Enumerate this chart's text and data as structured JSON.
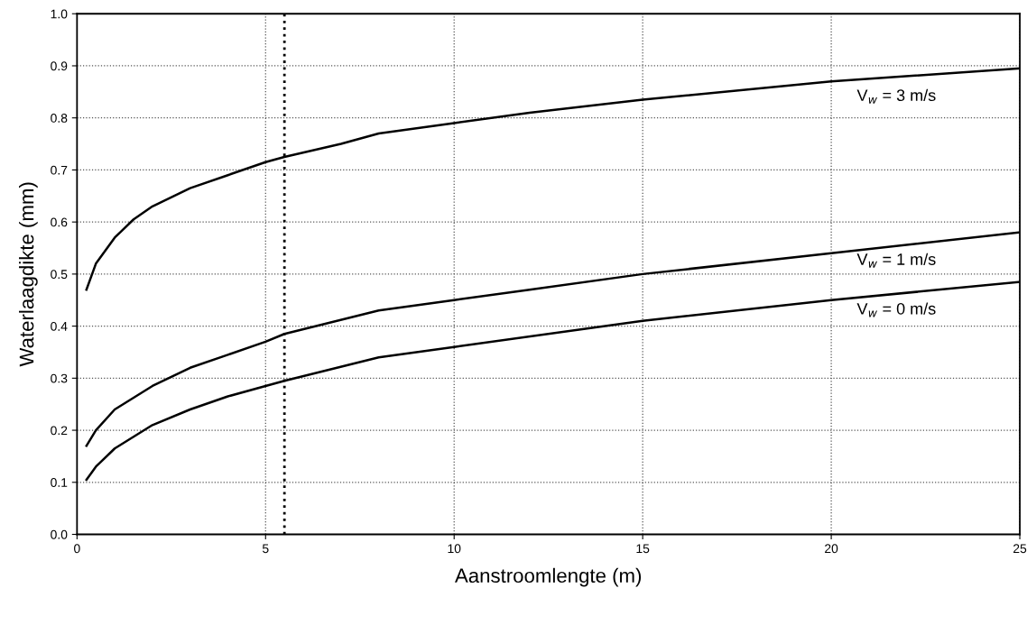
{
  "chart_data": {
    "type": "line",
    "xlabel": "Aanstroomlengte (m)",
    "ylabel": "Waterlaagdikte (mm)",
    "xlim": [
      0,
      25
    ],
    "xticks": [
      0,
      5,
      10,
      15,
      20,
      25
    ],
    "ylim": [
      0,
      1
    ],
    "yticks": [
      {
        "value": 0,
        "label": "0.0"
      },
      0.1,
      0.2,
      0.3,
      0.4,
      0.5,
      0.6,
      0.7,
      0.8,
      0.9,
      {
        "value": 1,
        "label": "1.0"
      }
    ],
    "grid": true,
    "legend": false,
    "marker": "none",
    "line_style": "solid",
    "ref_lines": [
      {
        "axis": "x",
        "value": 5.5,
        "line_style": "dotted",
        "color": "#000000"
      }
    ],
    "series": [
      {
        "name": "V$_{w}$ = 3 m/s",
        "color": "#000000",
        "x": [
          0.25,
          0.5,
          1,
          1.5,
          2,
          3,
          4,
          5,
          5.5,
          7,
          8,
          10,
          12,
          15,
          20,
          25
        ],
        "values": [
          0.47,
          0.52,
          0.57,
          0.605,
          0.63,
          0.665,
          0.69,
          0.715,
          0.725,
          0.75,
          0.77,
          0.79,
          0.81,
          0.835,
          0.87,
          0.895
        ]
      },
      {
        "name": "V$_{w}$ = 1 m/s",
        "color": "#000000",
        "x": [
          0.25,
          0.5,
          1,
          2,
          3,
          4,
          5,
          5.5,
          8,
          10,
          12,
          15,
          20,
          25
        ],
        "values": [
          0.17,
          0.2,
          0.24,
          0.285,
          0.32,
          0.345,
          0.37,
          0.385,
          0.43,
          0.45,
          0.47,
          0.5,
          0.54,
          0.58
        ]
      },
      {
        "name": "V$_{w}$ = 0 m/s",
        "color": "#000000",
        "x": [
          0.25,
          0.5,
          1,
          2,
          3,
          4,
          5,
          5.5,
          8,
          10,
          15,
          20,
          25
        ],
        "values": [
          0.105,
          0.13,
          0.165,
          0.21,
          0.24,
          0.265,
          0.285,
          0.295,
          0.34,
          0.36,
          0.41,
          0.45,
          0.485
        ]
      }
    ]
  }
}
